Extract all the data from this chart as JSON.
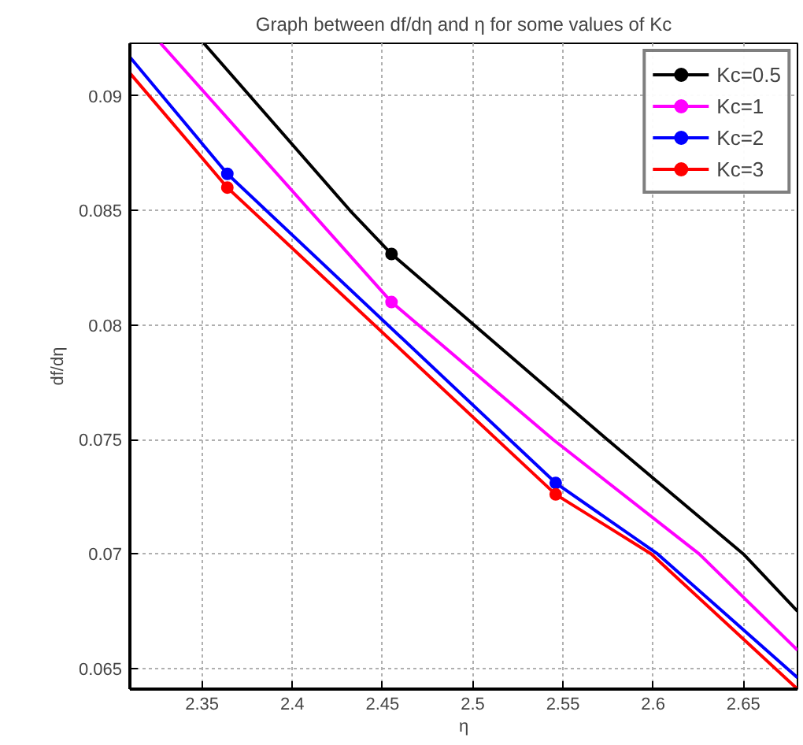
{
  "chart_data": {
    "type": "line",
    "title": "Graph between df/dη and η for some values of Kc",
    "xlabel": "η",
    "ylabel": "df/dη",
    "xlim": [
      2.31,
      2.68
    ],
    "ylim": [
      0.0641,
      0.0923
    ],
    "xticks": [
      2.35,
      2.4,
      2.45,
      2.5,
      2.55,
      2.6,
      2.65
    ],
    "yticks": [
      0.065,
      0.07,
      0.075,
      0.08,
      0.085,
      0.09
    ],
    "grid": true,
    "legend": "top right",
    "line_style": "solid",
    "series": [
      {
        "name": "Kc=0.5",
        "color": "#000000",
        "x": [
          2.351,
          2.432,
          2.455,
          2.5745,
          2.65,
          2.68
        ],
        "values": [
          0.0923,
          0.085,
          0.0831,
          0.075,
          0.07,
          0.0675
        ]
      },
      {
        "name": "Kc=1",
        "color": "#ff00ff",
        "x": [
          2.327,
          2.455,
          2.5445,
          2.6255,
          2.68
        ],
        "values": [
          0.0923,
          0.081,
          0.075,
          0.07,
          0.0658
        ]
      },
      {
        "name": "Kc=2",
        "color": "#0000ff",
        "x": [
          2.31,
          2.364,
          2.546,
          2.6025,
          2.68
        ],
        "values": [
          0.0917,
          0.0866,
          0.0731,
          0.07,
          0.0646
        ]
      },
      {
        "name": "Kc=3",
        "color": "#ff0000",
        "x": [
          2.31,
          2.364,
          2.546,
          2.599,
          2.68
        ],
        "values": [
          0.091,
          0.086,
          0.0726,
          0.07,
          0.0641
        ]
      },
      {
        "type": "scatter",
        "marker": "circle",
        "color": "#000000",
        "x": [
          2.455
        ],
        "values": [
          0.0831
        ]
      },
      {
        "type": "scatter",
        "marker": "circle",
        "color": "#ff00ff",
        "x": [
          2.455
        ],
        "values": [
          0.081
        ]
      },
      {
        "type": "scatter",
        "marker": "circle",
        "color": "#0000ff",
        "x": [
          2.364,
          2.546
        ],
        "values": [
          0.0866,
          0.0731
        ]
      },
      {
        "type": "scatter",
        "marker": "circle",
        "color": "#ff0000",
        "x": [
          2.364,
          2.546
        ],
        "values": [
          0.086,
          0.0726
        ]
      }
    ]
  }
}
